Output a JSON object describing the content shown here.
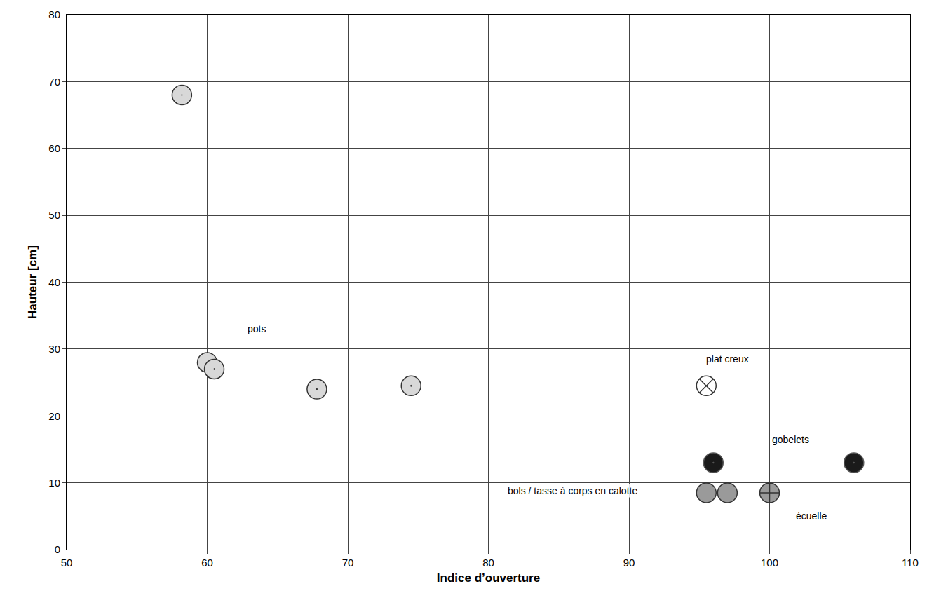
{
  "chart_data": {
    "type": "scatter",
    "x_label": "Indice d’ouverture",
    "y_label": "Hauteur [cm]",
    "xlim": [
      50,
      110
    ],
    "ylim": [
      0,
      80
    ],
    "xticks": [
      50,
      60,
      70,
      80,
      90,
      100,
      110
    ],
    "yticks": [
      0,
      10,
      20,
      30,
      40,
      50,
      60,
      70,
      80
    ],
    "grid": true,
    "series": [
      {
        "name": "pots",
        "color": "#d8d8d8",
        "marker": "dotted",
        "x": [
          58.2,
          60.0,
          60.5,
          67.8,
          74.5
        ],
        "values": [
          68,
          28,
          27,
          24,
          24.5
        ]
      },
      {
        "name": "plat creux",
        "color": "#ffffff",
        "marker": "hatched",
        "x": [
          95.5
        ],
        "values": [
          24.5
        ]
      },
      {
        "name": "gobelets",
        "color": "#1a1a1a",
        "marker": "dotted",
        "x": [
          96.0,
          106.0
        ],
        "values": [
          13,
          13
        ]
      },
      {
        "name": "bols / tasse à corps en calotte",
        "color": "#9a9a9a",
        "marker": "filled",
        "x": [
          95.5,
          97.0
        ],
        "values": [
          8.5,
          8.5
        ]
      },
      {
        "name": "écuelle",
        "color": "#9a9a9a",
        "marker": "crossed",
        "x": [
          100.0
        ],
        "values": [
          8.5
        ]
      }
    ],
    "annotations": [
      {
        "text": "pots",
        "x": 63.5,
        "y": 33
      },
      {
        "text": "plat creux",
        "x": 97,
        "y": 28.5
      },
      {
        "text": "gobelets",
        "x": 101.5,
        "y": 16.5
      },
      {
        "text": "bols / tasse à corps en calotte",
        "x": 86,
        "y": 8.8
      },
      {
        "text": "écuelle",
        "x": 103,
        "y": 5
      }
    ]
  }
}
